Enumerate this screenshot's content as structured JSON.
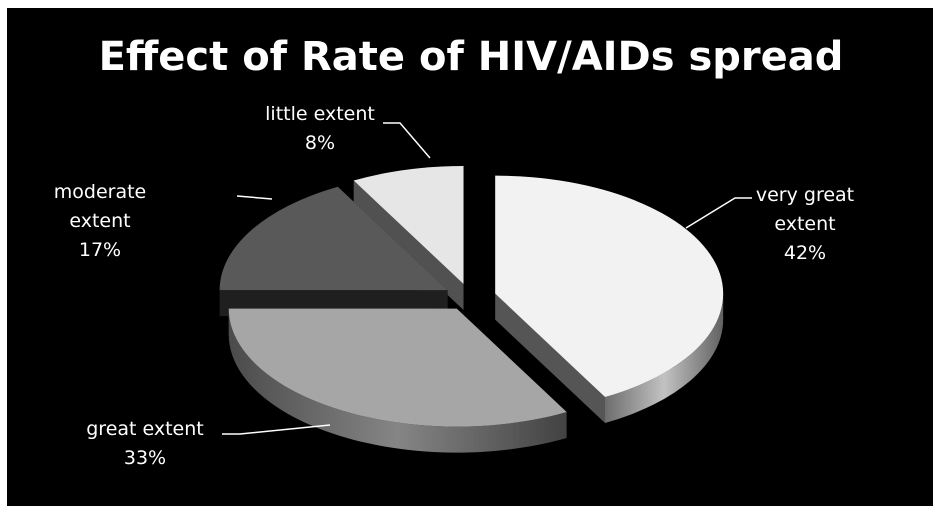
{
  "chart_data": {
    "type": "pie",
    "title": "Effect of Rate of HIV/AIDs spread",
    "categories": [
      "very great extent",
      "great extent",
      "moderate extent",
      "little extent"
    ],
    "values": [
      42,
      33,
      17,
      8
    ],
    "unit": "%",
    "labels": {
      "very great extent": {
        "line1": "very great",
        "line2": "extent",
        "pct": "42%"
      },
      "great extent": {
        "line1": "great extent",
        "line2": "",
        "pct": "33%"
      },
      "moderate extent": {
        "line1": "moderate",
        "line2": "extent",
        "pct": "17%"
      },
      "little extent": {
        "line1": "little extent",
        "line2": "",
        "pct": "8%"
      }
    },
    "style": "3d-exploded",
    "colors": {
      "background": "#000000",
      "very great extent": "#f2f2f2",
      "great extent": "#a6a6a6",
      "moderate extent": "#595959",
      "little extent": "#e6e6e6"
    }
  }
}
